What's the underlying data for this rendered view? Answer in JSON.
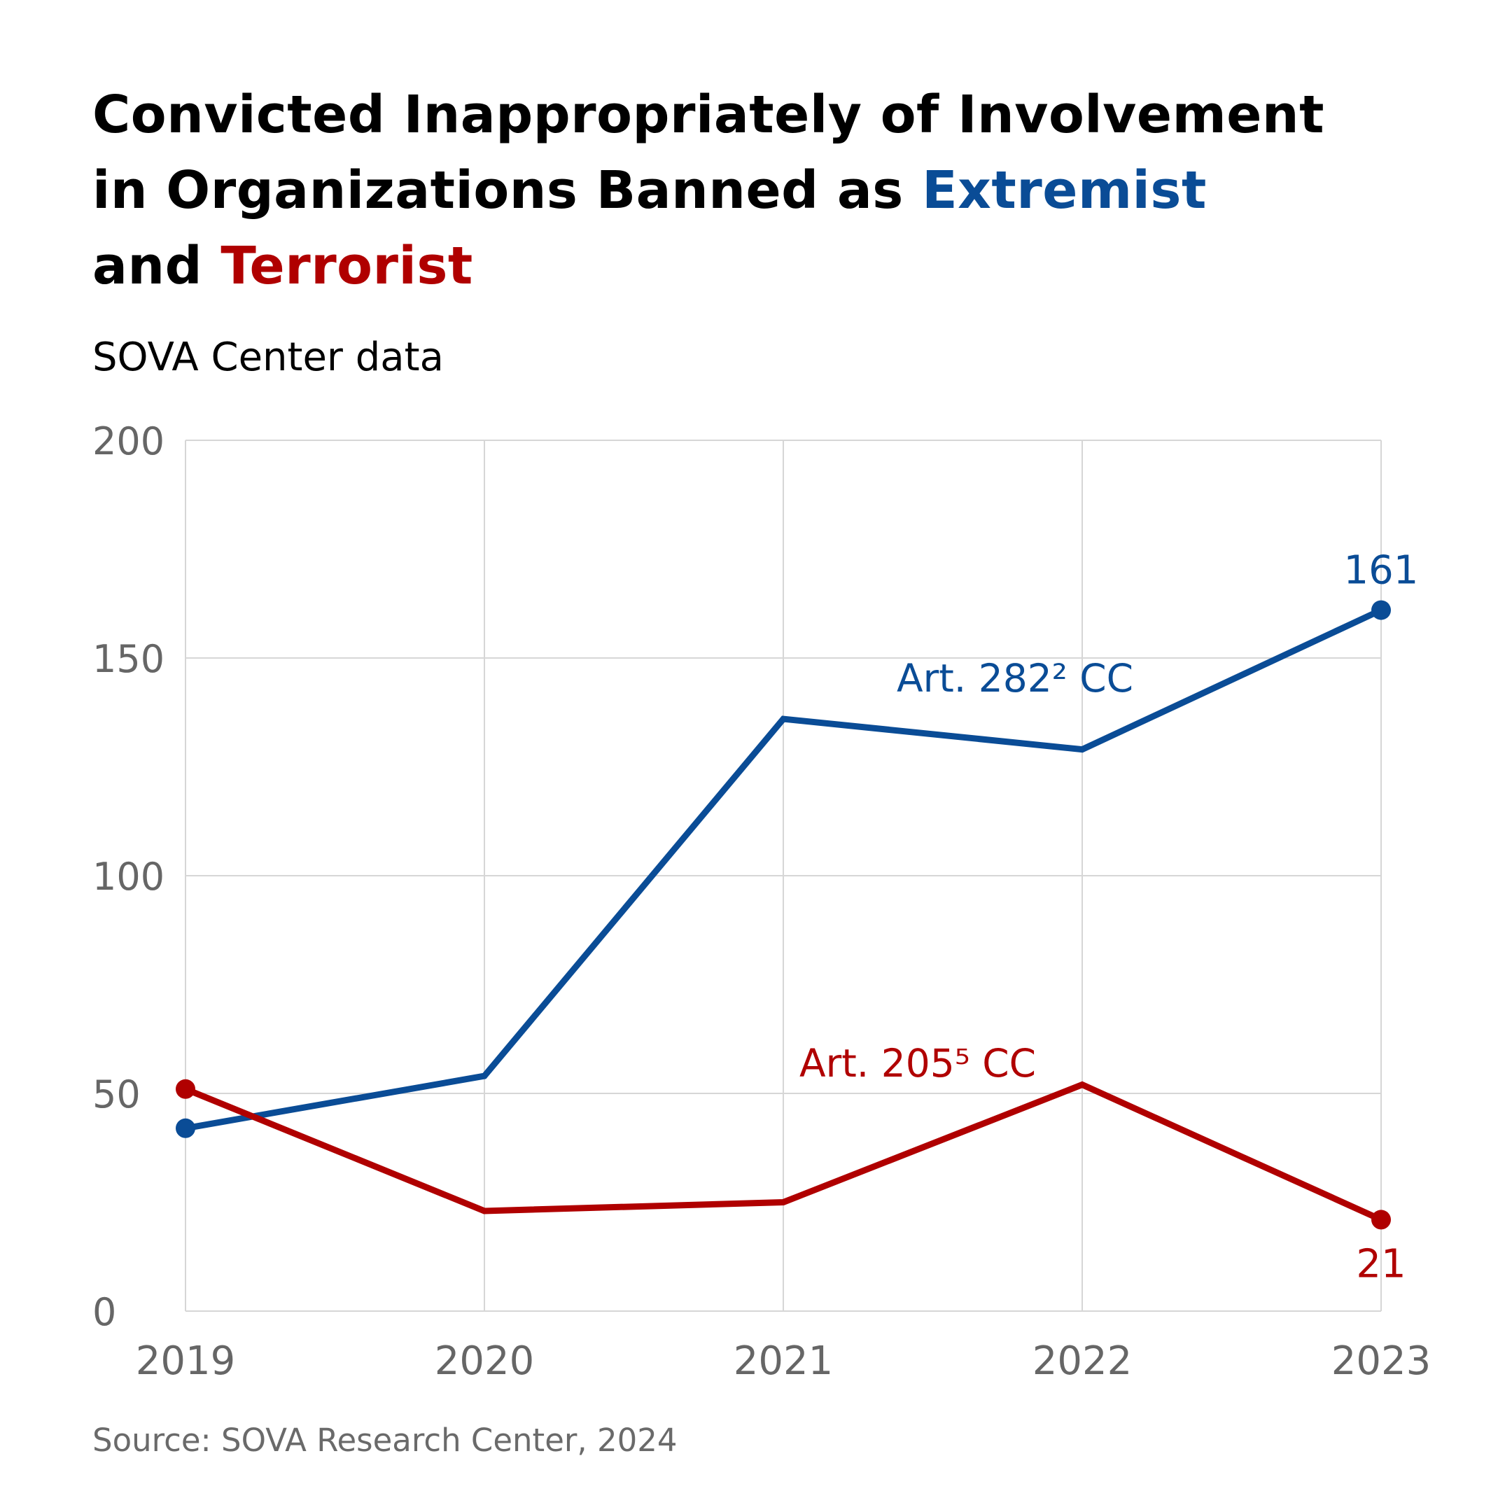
{
  "title": {
    "line1": "Convicted Inappropriately of Involvement",
    "line2_prefix": "in Organizations Banned as ",
    "line2_highlight": "Extremist",
    "line3_prefix": "and ",
    "line3_highlight": "Terrorist"
  },
  "subtitle": "SOVA Center data",
  "source": "Source: SOVA Research Center, 2024",
  "colors": {
    "extremist": "#0a4c96",
    "terrorist": "#b00000",
    "grid": "#d6d6d6",
    "tick_text": "#666666"
  },
  "chart_data": {
    "type": "line",
    "x": [
      "2019",
      "2020",
      "2021",
      "2022",
      "2023"
    ],
    "ylim": [
      0,
      200
    ],
    "yticks": [
      0,
      50,
      100,
      150,
      200
    ],
    "grid": true,
    "series": [
      {
        "key": "extremist",
        "name": "Art. 282² CC",
        "values": [
          42,
          54,
          136,
          129,
          161
        ],
        "end_label": "161",
        "label_near": "2021–2022, above line"
      },
      {
        "key": "terrorist",
        "name": "Art. 205⁵ CC",
        "values": [
          51,
          23,
          25,
          52,
          21
        ],
        "end_label": "21",
        "label_near": "2021–2022, above line"
      }
    ]
  }
}
